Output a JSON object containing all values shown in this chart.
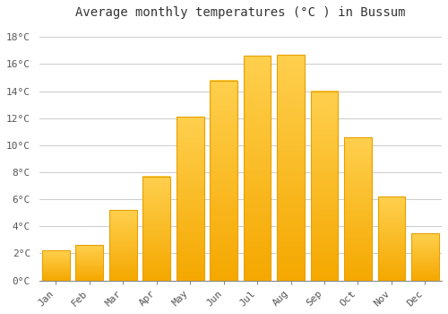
{
  "title": "Average monthly temperatures (°C ) in Bussum",
  "months": [
    "Jan",
    "Feb",
    "Mar",
    "Apr",
    "May",
    "Jun",
    "Jul",
    "Aug",
    "Sep",
    "Oct",
    "Nov",
    "Dec"
  ],
  "values": [
    2.2,
    2.6,
    5.2,
    7.7,
    12.1,
    14.8,
    16.6,
    16.7,
    14.0,
    10.6,
    6.2,
    3.5
  ],
  "bar_color_light": "#FFD04E",
  "bar_color_dark": "#F5A800",
  "bar_edge_color": "#E8A000",
  "yticks": [
    0,
    2,
    4,
    6,
    8,
    10,
    12,
    14,
    16,
    18
  ],
  "ytick_labels": [
    "0°C",
    "2°C",
    "4°C",
    "6°C",
    "8°C",
    "10°C",
    "12°C",
    "14°C",
    "16°C",
    "18°C"
  ],
  "ylim": [
    0,
    19.0
  ],
  "background_color": "#ffffff",
  "grid_color": "#cccccc",
  "title_fontsize": 10,
  "tick_fontsize": 8,
  "bar_width": 0.82
}
